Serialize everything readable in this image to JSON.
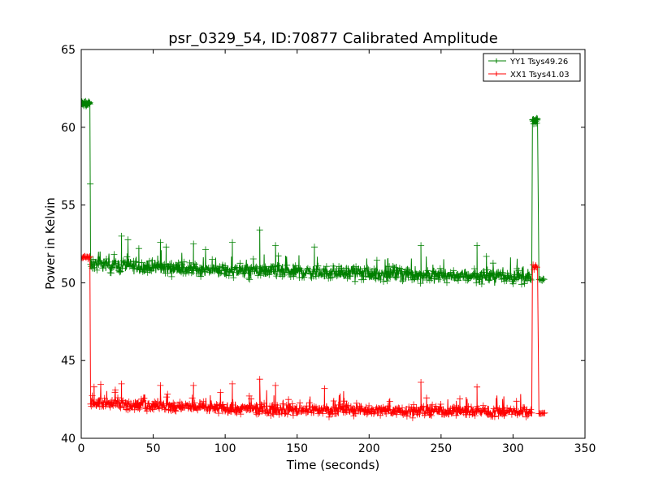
{
  "chart_data": {
    "type": "line",
    "title": "psr_0329_54, ID:70877 Calibrated Amplitude",
    "xlabel": "Time (seconds)",
    "ylabel": "Power in Kelvin",
    "xlim": [
      0,
      350
    ],
    "ylim": [
      40,
      65
    ],
    "xticks": [
      "0",
      "50",
      "100",
      "150",
      "200",
      "250",
      "300",
      "350"
    ],
    "yticks": [
      "40",
      "45",
      "50",
      "55",
      "60",
      "65"
    ],
    "grid": false,
    "legend_position": "top-right",
    "series": [
      {
        "name": "YY1 Tsys49.26",
        "color": "#008000",
        "marker": "+",
        "segments": [
          {
            "x": [
              0,
              6
            ],
            "y": [
              61.5,
              61.5
            ],
            "noise": 0.3
          },
          {
            "x": [
              6,
              6.5
            ],
            "y": [
              61.5,
              51.2
            ],
            "noise": 0
          },
          {
            "x": [
              6.5,
              100
            ],
            "y": [
              51.2,
              50.8
            ],
            "noise": 0.7
          },
          {
            "x": [
              100,
              313
            ],
            "y": [
              50.8,
              50.35
            ],
            "noise": 0.7
          },
          {
            "x": [
              313.5,
              317
            ],
            "y": [
              60.4,
              60.4
            ],
            "noise": 0.3
          },
          {
            "x": [
              318,
              322
            ],
            "y": [
              50.2,
              50.2
            ],
            "noise": 0.1
          }
        ],
        "spikes": [
          [
            28,
            53.0
          ],
          [
            55,
            52.6
          ],
          [
            78,
            52.5
          ],
          [
            105,
            52.6
          ],
          [
            124,
            53.4
          ],
          [
            135,
            52.4
          ],
          [
            162,
            52.3
          ],
          [
            236,
            52.4
          ],
          [
            275,
            52.4
          ],
          [
            59,
            52.3
          ],
          [
            40,
            52.2
          ]
        ]
      },
      {
        "name": "XX1 Tsys41.03",
        "color": "#ff0000",
        "marker": "+",
        "segments": [
          {
            "x": [
              0,
              6
            ],
            "y": [
              51.6,
              51.6
            ],
            "noise": 0.15
          },
          {
            "x": [
              6,
              6.5
            ],
            "y": [
              51.6,
              42.2
            ],
            "noise": 0
          },
          {
            "x": [
              6.5,
              100
            ],
            "y": [
              42.3,
              41.9
            ],
            "noise": 0.6
          },
          {
            "x": [
              100,
              313
            ],
            "y": [
              41.9,
              41.7
            ],
            "noise": 0.6
          },
          {
            "x": [
              313.5,
              317
            ],
            "y": [
              51.0,
              51.0
            ],
            "noise": 0.2
          },
          {
            "x": [
              318,
              322
            ],
            "y": [
              41.6,
              41.6
            ],
            "noise": 0.1
          }
        ],
        "spikes": [
          [
            28,
            43.5
          ],
          [
            55,
            43.4
          ],
          [
            78,
            43.4
          ],
          [
            105,
            43.5
          ],
          [
            124,
            43.8
          ],
          [
            135,
            43.4
          ],
          [
            236,
            43.6
          ],
          [
            275,
            43.3
          ],
          [
            169,
            43.2
          ]
        ]
      }
    ]
  }
}
